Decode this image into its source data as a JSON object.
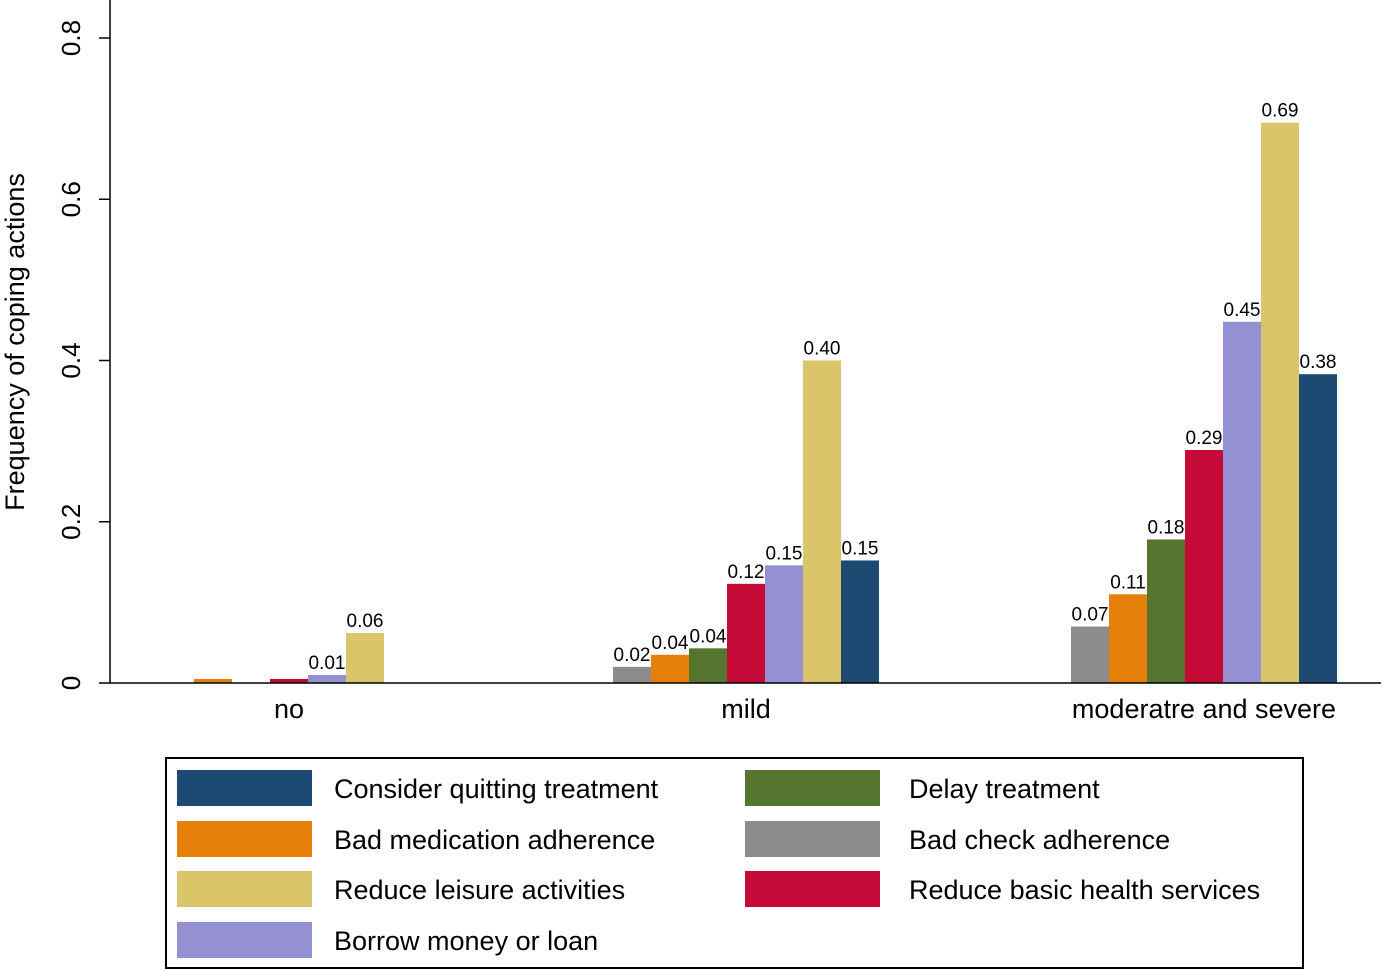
{
  "chart_data": {
    "type": "bar",
    "title": "",
    "xlabel": "",
    "ylabel": "Frequency of coping actions",
    "ylim": [
      0,
      0.8
    ],
    "yticks": [
      "0",
      "0.2",
      "0.4",
      "0.6",
      "0.8"
    ],
    "categories": [
      "no",
      "mild",
      "moderatre and severe"
    ],
    "grid": false,
    "legend_position": "bottom",
    "series": [
      {
        "name": "Bad check adherence",
        "color": "#8c8c8c",
        "values": [
          0,
          0.02,
          0.07
        ],
        "labels": [
          "",
          "0.02",
          "0.07"
        ]
      },
      {
        "name": "Bad medication adherence",
        "color": "#e6800a",
        "values": [
          0.005,
          0.035,
          0.11
        ],
        "labels": [
          "",
          "0.04",
          "0.11"
        ]
      },
      {
        "name": "Delay treatment",
        "color": "#56752f",
        "values": [
          0,
          0.043,
          0.178
        ],
        "labels": [
          "",
          "0.04",
          "0.18"
        ]
      },
      {
        "name": "Reduce basic health services",
        "color": "#c50a38",
        "values": [
          0.005,
          0.123,
          0.289
        ],
        "labels": [
          "",
          "0.12",
          "0.29"
        ]
      },
      {
        "name": "Borrow money or loan",
        "color": "#9590d2",
        "values": [
          0.01,
          0.146,
          0.448
        ],
        "labels": [
          "0.01",
          "0.15",
          "0.45"
        ]
      },
      {
        "name": "Reduce leisure activities",
        "color": "#dbc56b",
        "values": [
          0.062,
          0.4,
          0.695
        ],
        "labels": [
          "0.06",
          "0.40",
          "0.69"
        ]
      },
      {
        "name": "Consider quitting treatment",
        "color": "#1c4a72",
        "values": [
          0,
          0.152,
          0.383
        ],
        "labels": [
          "",
          "0.15",
          "0.38"
        ]
      }
    ],
    "legend": [
      {
        "name": "Consider quitting treatment",
        "color": "#1c4a72"
      },
      {
        "name": "Delay treatment",
        "color": "#56752f"
      },
      {
        "name": "Bad medication adherence",
        "color": "#e6800a"
      },
      {
        "name": "Bad check adherence",
        "color": "#8c8c8c"
      },
      {
        "name": "Reduce leisure activities",
        "color": "#dbc56b"
      },
      {
        "name": "Reduce basic health services",
        "color": "#c50a38"
      },
      {
        "name": "Borrow money or loan",
        "color": "#9590d2"
      }
    ]
  }
}
